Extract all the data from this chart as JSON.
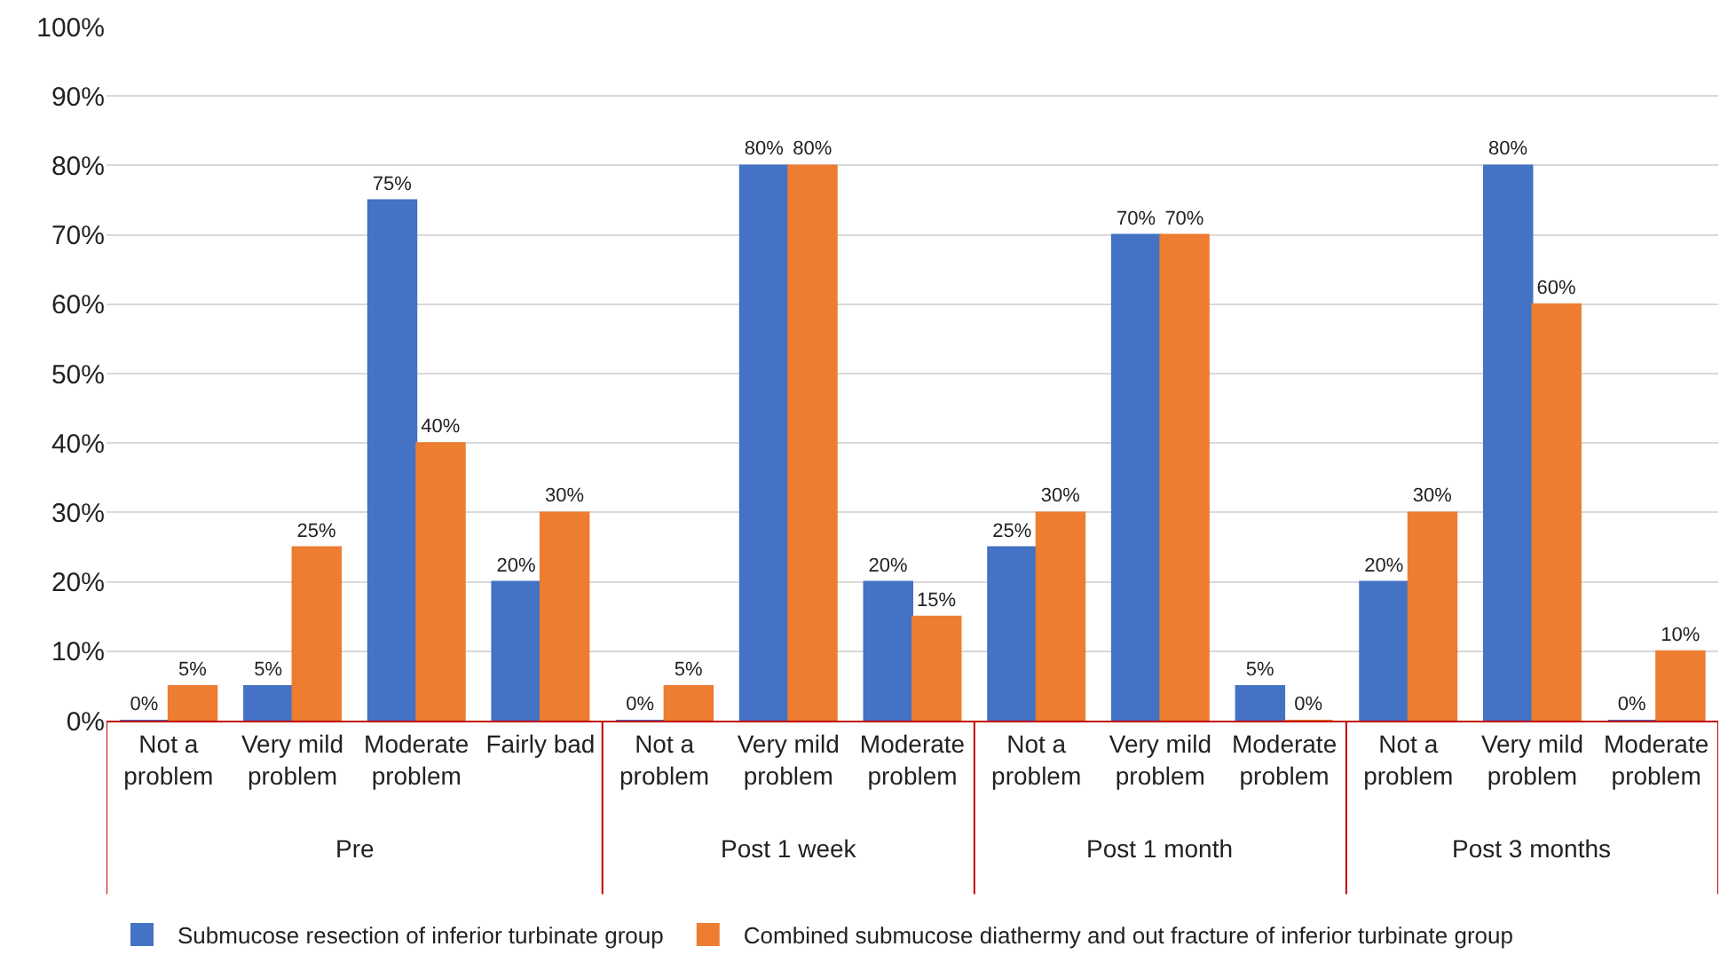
{
  "chart_data": {
    "type": "bar",
    "categories": [
      "Not a problem",
      "Very mild problem",
      "Moderate problem",
      "Fairly bad",
      "Not a problem",
      "Very mild problem",
      "Moderate problem",
      "Not a problem",
      "Very mild problem",
      "Moderate problem",
      "Not a problem",
      "Very mild problem",
      "Moderate problem"
    ],
    "series": [
      {
        "name": "Submucose resection of inferior turbinate group",
        "color": "#4472c4",
        "values": [
          0,
          5,
          75,
          20,
          0,
          80,
          20,
          25,
          70,
          5,
          20,
          80,
          0
        ],
        "value_labels": [
          "0%",
          "5%",
          "75%",
          "20%",
          "0%",
          "80%",
          "20%",
          "25%",
          "70%",
          "5%",
          "20%",
          "80%",
          "0%"
        ]
      },
      {
        "name": "Combined submucose diathermy and out fracture of inferior turbinate group",
        "color": "#ed7d31",
        "values": [
          5,
          25,
          40,
          30,
          5,
          80,
          15,
          30,
          70,
          0,
          30,
          60,
          10
        ],
        "value_labels": [
          "5%",
          "25%",
          "40%",
          "30%",
          "5%",
          "80%",
          "15%",
          "30%",
          "70%",
          "0%",
          "30%",
          "60%",
          "10%"
        ]
      }
    ],
    "annotations": [
      "Pre",
      "Post 1 week",
      "Post 1 month",
      "Post 3 months"
    ],
    "ylim": [
      0,
      100
    ],
    "yticks": [
      {
        "value": 0,
        "label": "0%"
      },
      {
        "value": 10,
        "label": "10%"
      },
      {
        "value": 20,
        "label": "20%"
      },
      {
        "value": 30,
        "label": "30%"
      },
      {
        "value": 40,
        "label": "40%"
      },
      {
        "value": 50,
        "label": "50%"
      },
      {
        "value": 60,
        "label": "60%"
      },
      {
        "value": 70,
        "label": "70%"
      },
      {
        "value": 80,
        "label": "80%"
      },
      {
        "value": 90,
        "label": "90%"
      },
      {
        "value": 100,
        "label": "100%"
      }
    ],
    "grid": "y",
    "legend": "bottom"
  }
}
